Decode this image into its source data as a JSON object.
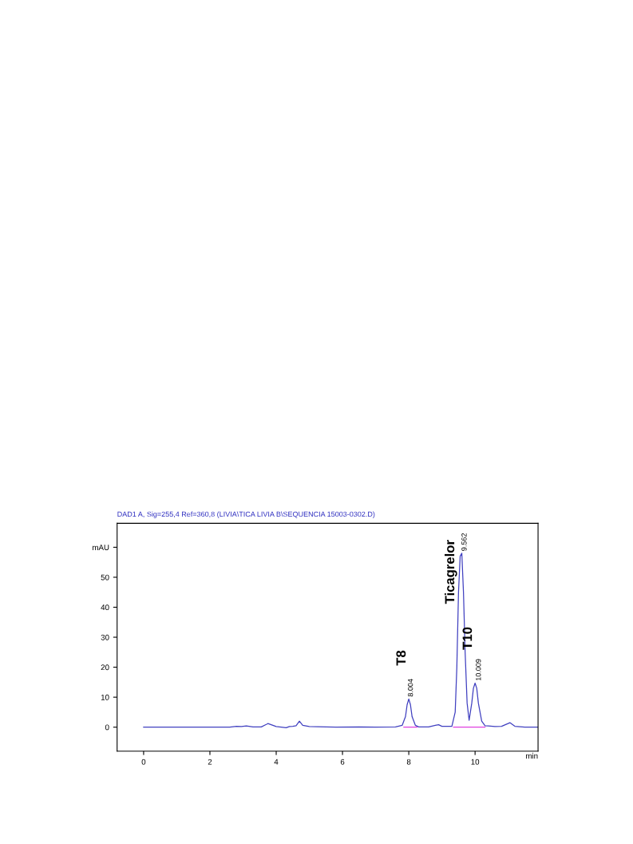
{
  "chart_data": {
    "type": "line",
    "title": "DAD1 A, Sig=255,4 Ref=360,8 (LIVIA\\TICA LIVIA B\\SEQUENCIA 15003-0302.D)",
    "xlabel": "min",
    "xlim": [
      -0.8,
      11.9
    ],
    "ylim": [
      -8,
      68
    ],
    "xticks": [
      0,
      2,
      4,
      6,
      8,
      10
    ],
    "yticks": [
      0,
      10,
      20,
      30,
      40,
      50,
      {
        "value": 60,
        "label": "mAU"
      }
    ],
    "grid": false,
    "marker": "none",
    "line_style": "solid",
    "series": [
      {
        "color": "#4040c0",
        "x": [
          0,
          2.6,
          2.8,
          2.95,
          3.1,
          3.3,
          3.55,
          3.7,
          3.75,
          3.85,
          4.0,
          4.3,
          4.4,
          4.5,
          4.6,
          4.7,
          4.8,
          5.0,
          5.5,
          5.8,
          6.5,
          7.0,
          7.6,
          7.8,
          7.9,
          7.95,
          8.0,
          8.05,
          8.1,
          8.2,
          8.3,
          8.6,
          8.8,
          8.9,
          9.0,
          9.3,
          9.4,
          9.45,
          9.5,
          9.55,
          9.6,
          9.65,
          9.7,
          9.76,
          9.82,
          9.9,
          9.95,
          10.0,
          10.05,
          10.1,
          10.2,
          10.3,
          10.4,
          10.6,
          10.8,
          11.05,
          11.2,
          11.5,
          11.9
        ],
        "values": [
          0,
          0,
          0.3,
          0.2,
          0.4,
          0.1,
          0.1,
          0.9,
          1.2,
          0.8,
          0.2,
          -0.2,
          0.2,
          0.3,
          0.5,
          2.0,
          0.6,
          0.2,
          0.1,
          0,
          0.1,
          0,
          0.1,
          0.6,
          3.5,
          7.5,
          9.4,
          7.5,
          3.5,
          0.6,
          0.1,
          0.1,
          0.6,
          0.8,
          0.3,
          0.3,
          5,
          20,
          45,
          57,
          58,
          45,
          25,
          8,
          2.3,
          8,
          13,
          14.7,
          13,
          8,
          2,
          0.5,
          0.4,
          0.2,
          0.3,
          1.5,
          0.3,
          0,
          0
        ]
      },
      {
        "color": "#e040e0",
        "x": [
          7.85,
          8.25,
          null,
          9.35,
          9.82,
          10.3
        ],
        "values": [
          0,
          0,
          null,
          0,
          0,
          0
        ]
      }
    ],
    "annotations": [
      {
        "text": "8.004",
        "x": 8.0,
        "y": 9.4
      },
      {
        "text": "T8",
        "x": 8.0,
        "y": 9.4
      },
      {
        "text": "9.562",
        "x": 9.62,
        "y": 58
      },
      {
        "text": "Ticagrelor",
        "x": 9.47,
        "y": 30
      },
      {
        "text": "10.009",
        "x": 10.05,
        "y": 14.7
      },
      {
        "text": "T10",
        "x": 10.0,
        "y": 14.7
      }
    ]
  }
}
